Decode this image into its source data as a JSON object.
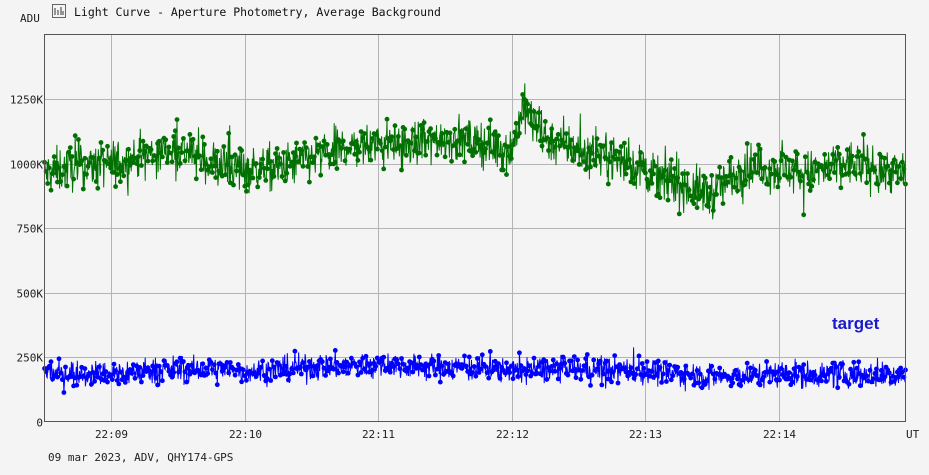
{
  "window": {
    "title": "Light Curve - Aperture Photometry, Average Background",
    "icon": "light-curve-icon"
  },
  "footer": {
    "info": "09 mar 2023, ADV, QHY174-GPS"
  },
  "colors": {
    "background": "#f4f4f4",
    "grid": "#b4b4b4",
    "comparison": "#007000",
    "target": "#0000ff",
    "label": "#1a1acc"
  },
  "chart_data": {
    "type": "line",
    "ylabel": "ADU",
    "xlabel": "UT",
    "ylim": [
      0,
      1500000
    ],
    "xlim": [
      "22:08:30",
      "22:14:57"
    ],
    "x_ticks": [
      "22:09",
      "22:10",
      "22:11",
      "22:12",
      "22:13",
      "22:14"
    ],
    "y_ticks": [
      {
        "value": 0,
        "label": "0"
      },
      {
        "value": 250000,
        "label": "250K"
      },
      {
        "value": 500000,
        "label": "500K"
      },
      {
        "value": 750000,
        "label": "750K"
      },
      {
        "value": 1000000,
        "label": "1000K"
      },
      {
        "value": 1250000,
        "label": "1250K"
      }
    ],
    "grid": true,
    "annotations": [
      {
        "text": "target"
      }
    ],
    "series": [
      {
        "color": "#007000",
        "x": [
          "22:08:30",
          "22:08:45",
          "22:09:00",
          "22:09:15",
          "22:09:30",
          "22:09:45",
          "22:10:00",
          "22:10:15",
          "22:10:30",
          "22:10:45",
          "22:11:00",
          "22:11:15",
          "22:11:30",
          "22:11:45",
          "22:12:00",
          "22:12:05",
          "22:12:15",
          "22:12:30",
          "22:12:45",
          "22:13:00",
          "22:13:15",
          "22:13:30",
          "22:13:45",
          "22:14:00",
          "22:14:15",
          "22:14:30",
          "22:14:45",
          "22:14:57"
        ],
        "values": [
          960000,
          990000,
          1000000,
          1030000,
          1060000,
          1000000,
          980000,
          980000,
          1020000,
          1060000,
          1080000,
          1070000,
          1100000,
          1080000,
          1050000,
          1220000,
          1100000,
          1050000,
          1030000,
          970000,
          920000,
          880000,
          990000,
          980000,
          960000,
          1000000,
          980000,
          960000
        ],
        "noise": 80000
      },
      {
        "color": "#0000ff",
        "x": [
          "22:08:30",
          "22:09:00",
          "22:09:30",
          "22:10:00",
          "22:10:30",
          "22:11:00",
          "22:11:30",
          "22:12:00",
          "22:12:30",
          "22:13:00",
          "22:13:30",
          "22:14:00",
          "22:14:30",
          "22:14:57"
        ],
        "values": [
          190000,
          185000,
          205000,
          195000,
          210000,
          220000,
          210000,
          200000,
          205000,
          195000,
          175000,
          185000,
          180000,
          180000
        ],
        "noise": 45000
      }
    ]
  }
}
